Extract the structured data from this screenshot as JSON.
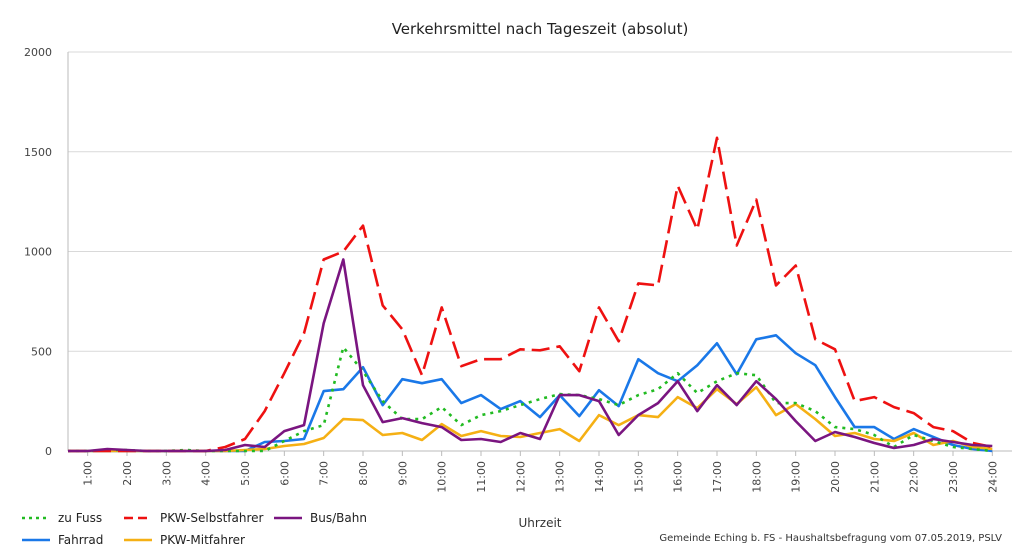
{
  "chart_data": {
    "type": "line",
    "title": "Verkehrsmittel nach Tageszeit (absolut)",
    "xlabel": "Uhrzeit",
    "ylabel": "",
    "ylim": [
      0,
      2000
    ],
    "yticks": [
      0,
      500,
      1000,
      1500,
      2000
    ],
    "xticks": [
      "1:00",
      "2:00",
      "3:00",
      "4:00",
      "5:00",
      "6:00",
      "7:00",
      "8:00",
      "9:00",
      "10:00",
      "11:00",
      "12:00",
      "13:00",
      "14:00",
      "15:00",
      "16:00",
      "17:00",
      "18:00",
      "19:00",
      "20:00",
      "21:00",
      "22:00",
      "23:00",
      "24:00"
    ],
    "grid": "horizontal",
    "legend_position": "bottom-left",
    "x": [
      0.5,
      1,
      1.5,
      2,
      2.5,
      3,
      3.5,
      4,
      4.5,
      5,
      5.5,
      6,
      6.5,
      7,
      7.5,
      8,
      8.5,
      9,
      9.5,
      10,
      10.5,
      11,
      11.5,
      12,
      12.5,
      13,
      13.5,
      14,
      14.5,
      15,
      15.5,
      16,
      16.5,
      17,
      17.5,
      18,
      18.5,
      19,
      19.5,
      20,
      20.5,
      21,
      21.5,
      22,
      22.5,
      23,
      23.5,
      24
    ],
    "series": [
      {
        "name": "zu Fuss",
        "color": "#22bb22",
        "dash": "dotted",
        "values": [
          0,
          0,
          5,
          5,
          0,
          0,
          5,
          0,
          0,
          0,
          0,
          50,
          100,
          130,
          520,
          400,
          250,
          160,
          160,
          220,
          130,
          180,
          200,
          230,
          260,
          285,
          280,
          260,
          230,
          280,
          310,
          390,
          290,
          350,
          390,
          380,
          240,
          240,
          200,
          120,
          110,
          80,
          20,
          80,
          50,
          20,
          10,
          0
        ]
      },
      {
        "name": "PKW-Selbstfahrer",
        "color": "#ee1111",
        "dash": "longdash",
        "values": [
          0,
          0,
          0,
          0,
          0,
          0,
          0,
          0,
          20,
          60,
          200,
          390,
          590,
          960,
          1000,
          1130,
          730,
          610,
          380,
          720,
          425,
          460,
          460,
          510,
          505,
          525,
          400,
          720,
          550,
          840,
          830,
          1330,
          1110,
          1570,
          1030,
          1260,
          830,
          930,
          560,
          510,
          250,
          270,
          220,
          190,
          120,
          100,
          40,
          20
        ]
      },
      {
        "name": "Bus/Bahn",
        "color": "#7a1580",
        "dash": "solid",
        "values": [
          0,
          0,
          10,
          5,
          0,
          0,
          0,
          0,
          5,
          30,
          20,
          100,
          130,
          640,
          960,
          330,
          145,
          165,
          140,
          120,
          55,
          60,
          45,
          90,
          60,
          280,
          280,
          250,
          80,
          180,
          240,
          350,
          200,
          330,
          230,
          350,
          260,
          150,
          50,
          95,
          70,
          40,
          15,
          30,
          60,
          45,
          30,
          25
        ]
      },
      {
        "name": "Fahrrad",
        "color": "#1a78e8",
        "dash": "solid",
        "values": [
          0,
          0,
          0,
          0,
          0,
          0,
          0,
          0,
          0,
          0,
          45,
          50,
          60,
          300,
          310,
          420,
          230,
          360,
          340,
          360,
          240,
          280,
          210,
          250,
          170,
          280,
          175,
          305,
          225,
          460,
          390,
          350,
          430,
          540,
          385,
          560,
          580,
          490,
          430,
          270,
          120,
          120,
          60,
          110,
          70,
          30,
          10,
          0
        ]
      },
      {
        "name": "PKW-Mitfahrer",
        "color": "#f5b014",
        "dash": "solid",
        "values": [
          0,
          0,
          0,
          0,
          0,
          0,
          0,
          0,
          0,
          5,
          10,
          25,
          35,
          65,
          160,
          155,
          80,
          90,
          55,
          135,
          75,
          100,
          75,
          70,
          90,
          110,
          50,
          180,
          130,
          180,
          170,
          270,
          215,
          310,
          235,
          320,
          180,
          235,
          160,
          75,
          90,
          60,
          50,
          90,
          30,
          50,
          20,
          10
        ]
      }
    ],
    "source": "Gemeinde Eching b. FS - Haushaltsbefragung vom 07.05.2019, PSLV"
  }
}
